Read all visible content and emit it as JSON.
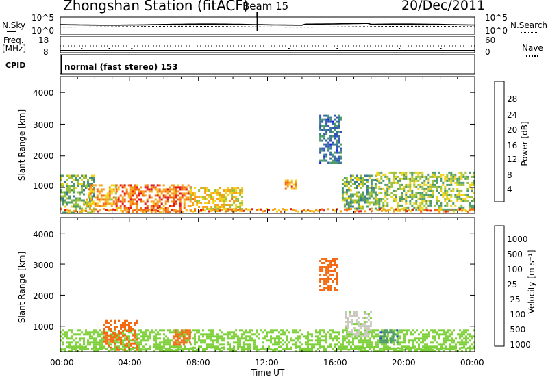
{
  "header": {
    "station": "Zhongshan Station (fitACF)",
    "beam": "Beam 15",
    "date": "20/Dec/2011"
  },
  "top_panels": {
    "nsky_label": "N.Sky",
    "nsky_ticks": [
      "10^5",
      "10^0"
    ],
    "nsearch_label": "N.Search",
    "nsearch_ticks": [
      "10^5",
      "10^0"
    ],
    "freq_label": "Freq.",
    "freq_unit": "[MHz]",
    "freq_ticks": [
      "18",
      "8"
    ],
    "nave_label": "Nave",
    "nave_ticks": [
      "60",
      "0"
    ],
    "cpid_label": "CPID",
    "cpid_text": "normal (fast stereo) 153"
  },
  "power_panel": {
    "ylabel": "Slant Range [km]",
    "yticks": [
      "4000",
      "3000",
      "2000",
      "1000"
    ],
    "cbar_label": "Power [dB]",
    "cbar_ticks": [
      "28",
      "24",
      "20",
      "16",
      "12",
      "8",
      "4"
    ]
  },
  "velocity_panel": {
    "ylabel": "Slant Range [km]",
    "yticks": [
      "4000",
      "3000",
      "2000",
      "1000"
    ],
    "cbar_label": "Velocity [m s⁻¹]",
    "cbar_ticks": [
      "1000",
      "500",
      "100",
      "25",
      "-25",
      "-100",
      "-500",
      "-1000"
    ]
  },
  "xaxis": {
    "label": "Time UT",
    "ticks": [
      "00:00",
      "04:00",
      "08:00",
      "12:00",
      "16:00",
      "20:00",
      "00:00"
    ]
  },
  "colors": {
    "power_scale": [
      "#1a1aff",
      "#2f56b8",
      "#3d7a8f",
      "#4f9a6a",
      "#99c23a",
      "#f2d21a",
      "#f7a11a",
      "#f46a12",
      "#e41a1a"
    ],
    "velocity_scale": [
      "#e8141a",
      "#f46a12",
      "#f3a12a",
      "#c9c9c0",
      "#c9c9c0",
      "#7fd13b",
      "#4e9a6a",
      "#1e4fbf"
    ]
  },
  "chart_data": [
    {
      "type": "heatmap",
      "name": "power",
      "xlabel": "Time UT",
      "ylabel": "Slant Range [km]",
      "xlim": [
        0,
        24
      ],
      "ylim": [
        180,
        4500
      ],
      "colorbar": {
        "label": "Power [dB]",
        "range": [
          0,
          32
        ],
        "ticks": [
          4,
          8,
          12,
          16,
          20,
          24,
          28
        ]
      },
      "regions": [
        {
          "t": [
            0,
            2
          ],
          "r": [
            200,
            1400
          ],
          "level": 14
        },
        {
          "t": [
            1.5,
            3.2
          ],
          "r": [
            400,
            1100
          ],
          "level": 22
        },
        {
          "t": [
            3.2,
            7.5
          ],
          "r": [
            250,
            1100
          ],
          "level": 26
        },
        {
          "t": [
            7.5,
            10.5
          ],
          "r": [
            250,
            1000
          ],
          "level": 20
        },
        {
          "t": [
            13,
            13.6
          ],
          "r": [
            950,
            1250
          ],
          "level": 24
        },
        {
          "t": [
            15,
            16.3
          ],
          "r": [
            1800,
            3300
          ],
          "level": 8
        },
        {
          "t": [
            16.3,
            18.3
          ],
          "r": [
            300,
            1400
          ],
          "level": 14
        },
        {
          "t": [
            18.3,
            24
          ],
          "r": [
            300,
            1500
          ],
          "level": 16
        }
      ]
    },
    {
      "type": "heatmap",
      "name": "velocity",
      "xlabel": "Time UT",
      "ylabel": "Slant Range [km]",
      "xlim": [
        0,
        24
      ],
      "ylim": [
        180,
        4500
      ],
      "colorbar": {
        "label": "Velocity [m s⁻¹]",
        "ticks": [
          -1000,
          -500,
          -100,
          -25,
          25,
          100,
          500,
          1000
        ]
      },
      "regions": [
        {
          "t": [
            0,
            24
          ],
          "r": [
            200,
            900
          ],
          "value": 200
        },
        {
          "t": [
            2.5,
            4.5
          ],
          "r": [
            250,
            1200
          ],
          "value": -300
        },
        {
          "t": [
            6.5,
            7.5
          ],
          "r": [
            400,
            900
          ],
          "value": -300
        },
        {
          "t": [
            15,
            16
          ],
          "r": [
            2200,
            3200
          ],
          "value": -200
        },
        {
          "t": [
            16.5,
            18
          ],
          "r": [
            700,
            1500
          ],
          "value": 80
        },
        {
          "t": [
            18.5,
            19.5
          ],
          "r": [
            500,
            900
          ],
          "value": 800
        }
      ]
    }
  ]
}
